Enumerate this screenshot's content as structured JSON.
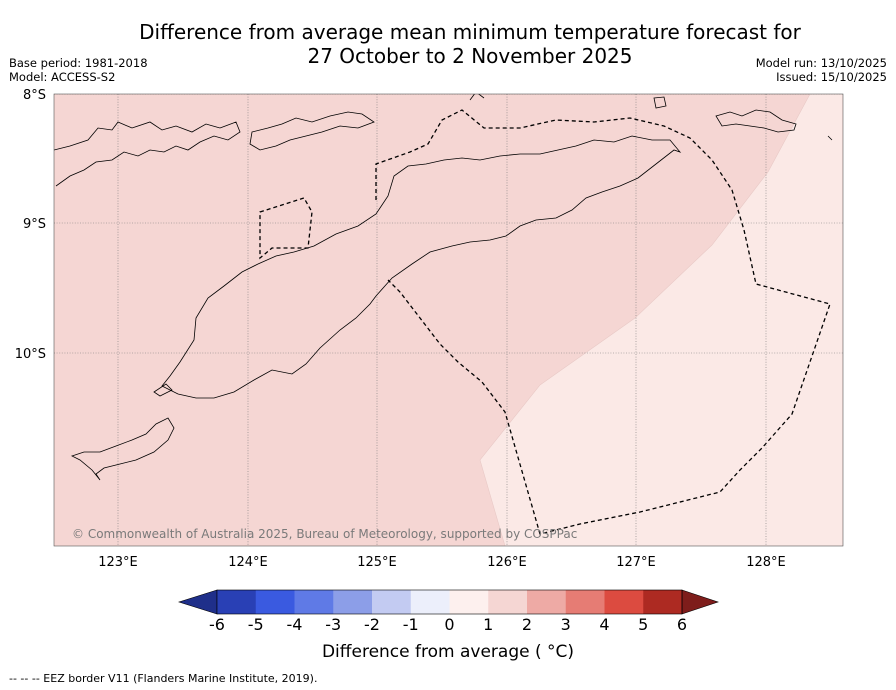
{
  "title": {
    "line1": "Difference from average mean minimum temperature forecast for",
    "line2": "27 October to 2 November 2025"
  },
  "meta_left": {
    "base_period": "Base period: 1981-2018",
    "model": "Model: ACCESS-S2"
  },
  "meta_right": {
    "model_run": "Model run: 13/10/2025",
    "issued": "Issued: 15/10/2025"
  },
  "map": {
    "lat_labels": [
      "8°S",
      "9°S",
      "10°S"
    ],
    "lon_labels": [
      "123°E",
      "124°E",
      "125°E",
      "126°E",
      "127°E",
      "128°E"
    ],
    "copyright": "© Commonwealth of Australia 2025, Bureau of Meteorology, supported by COSPPac",
    "fill_colors": {
      "class_0_to_1": "#fbe9e6",
      "class_1_to_2": "#f5d6d3"
    },
    "border_color": "#000000"
  },
  "colorbar": {
    "title": "Difference from average ( °C)",
    "ticks": [
      "-6",
      "-5",
      "-4",
      "-3",
      "-2",
      "-1",
      "0",
      "1",
      "2",
      "3",
      "4",
      "5",
      "6"
    ],
    "colors": [
      "#1f2f8a",
      "#2940b5",
      "#3a5ae0",
      "#5f7ae6",
      "#8c9ee8",
      "#c3cbf2",
      "#eceffb",
      "#fdf0ee",
      "#f5d6d3",
      "#eeaaa5",
      "#e67c74",
      "#dc4b40",
      "#ad2a22",
      "#7e1d1b"
    ]
  },
  "footnote": "-- -- -- EEZ border V11 (Flanders Marine Institute, 2019)."
}
